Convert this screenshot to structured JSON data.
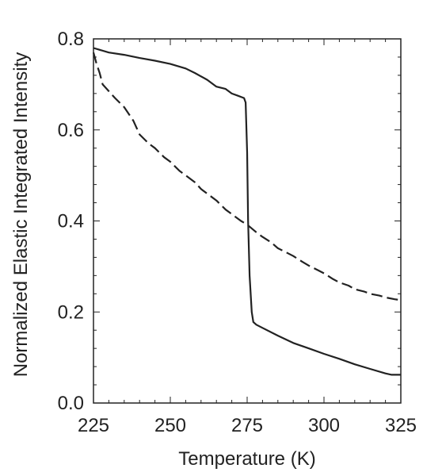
{
  "chart_data": {
    "type": "line",
    "title": "",
    "xlabel": "Temperature (K)",
    "ylabel": "Normalized Elastic Integrated Intensity",
    "xlim": [
      225,
      325
    ],
    "ylim": [
      0.0,
      0.8
    ],
    "x_ticks": [
      225,
      250,
      275,
      300,
      325
    ],
    "x_tick_labels": [
      "225",
      "250",
      "275",
      "300",
      "325"
    ],
    "y_ticks": [
      0.0,
      0.2,
      0.4,
      0.6,
      0.8
    ],
    "y_tick_labels": [
      "0.0",
      "0.2",
      "0.4",
      "0.6",
      "0.8"
    ],
    "grid": false,
    "legend": "none",
    "series": [
      {
        "style": "solid",
        "color": "#222222",
        "x": [
          225,
          230,
          235,
          240,
          245,
          250,
          255,
          258,
          262,
          265,
          268,
          270,
          272,
          274,
          274.5,
          275,
          275.3,
          275.8,
          276.5,
          277,
          278,
          280,
          285,
          290,
          295,
          300,
          305,
          310,
          315,
          320,
          322,
          325
        ],
        "y": [
          0.78,
          0.77,
          0.765,
          0.758,
          0.752,
          0.745,
          0.735,
          0.725,
          0.71,
          0.695,
          0.69,
          0.68,
          0.675,
          0.67,
          0.66,
          0.55,
          0.4,
          0.28,
          0.2,
          0.178,
          0.172,
          0.165,
          0.148,
          0.132,
          0.12,
          0.108,
          0.097,
          0.085,
          0.075,
          0.065,
          0.062,
          0.062
        ]
      },
      {
        "style": "dashed",
        "color": "#222222",
        "x": [
          225,
          226,
          227,
          228,
          230,
          232,
          235,
          238,
          240,
          243,
          245,
          248,
          250,
          253,
          255,
          258,
          260,
          263,
          265,
          268,
          270,
          273,
          275,
          278,
          280,
          283,
          285,
          288,
          290,
          293,
          295,
          298,
          300,
          303,
          305,
          308,
          310,
          313,
          315,
          318,
          320,
          323,
          325
        ],
        "y": [
          0.77,
          0.745,
          0.725,
          0.7,
          0.685,
          0.67,
          0.65,
          0.62,
          0.59,
          0.57,
          0.56,
          0.54,
          0.53,
          0.51,
          0.5,
          0.485,
          0.47,
          0.455,
          0.445,
          0.425,
          0.415,
          0.4,
          0.392,
          0.375,
          0.365,
          0.352,
          0.34,
          0.33,
          0.323,
          0.31,
          0.302,
          0.292,
          0.285,
          0.272,
          0.265,
          0.258,
          0.25,
          0.245,
          0.24,
          0.236,
          0.232,
          0.228,
          0.226
        ]
      }
    ]
  }
}
